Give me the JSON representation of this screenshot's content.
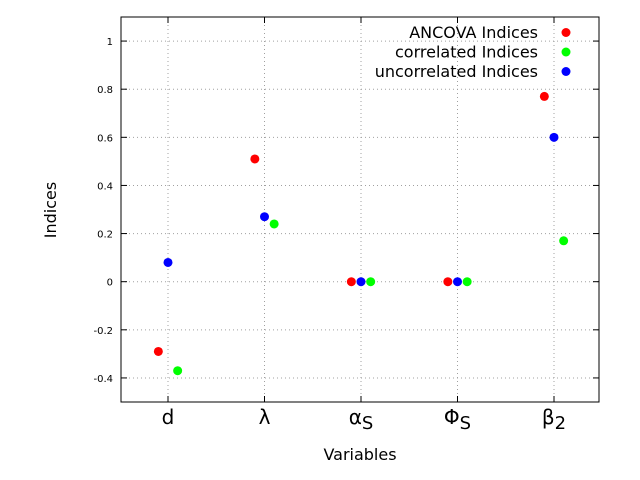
{
  "chart_data": {
    "type": "scatter",
    "title": "",
    "xlabel": "Variables",
    "ylabel": "Indices",
    "categories": [
      {
        "base": "d",
        "sub": ""
      },
      {
        "base": "λ",
        "sub": ""
      },
      {
        "base": "α",
        "sub": "S"
      },
      {
        "base": "Φ",
        "sub": "S"
      },
      {
        "base": "β",
        "sub": "2"
      }
    ],
    "ylim": [
      -0.5,
      1.1
    ],
    "yticks": [
      "1",
      "0.8",
      "0.6",
      "0.4",
      "0.2",
      "0",
      "-0.2",
      "-0.4"
    ],
    "yticks_values": [
      1,
      0.8,
      0.6,
      0.4,
      0.2,
      0,
      -0.2,
      -0.4
    ],
    "grid": true,
    "legend_position": "top-right",
    "series": [
      {
        "name": "ANCOVA Indices",
        "color": "#ff0000",
        "offset": -0.1,
        "values": [
          -0.29,
          0.51,
          0.0,
          0.0,
          0.77
        ]
      },
      {
        "name": "correlated Indices",
        "color": "#00ff00",
        "offset": 0.1,
        "values": [
          -0.37,
          0.24,
          0.0,
          0.0,
          0.17
        ]
      },
      {
        "name": "uncorrelated Indices",
        "color": "#0000ff",
        "offset": 0.0,
        "values": [
          0.08,
          0.27,
          0.0,
          0.0,
          0.6
        ]
      }
    ]
  }
}
